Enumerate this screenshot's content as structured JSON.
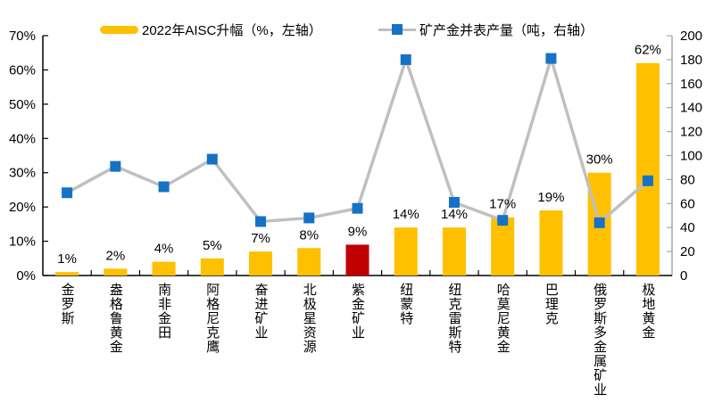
{
  "chart_data": {
    "type": "combo-bar-line",
    "title": "",
    "background": "#FFFFFF",
    "grid": false,
    "legend_position": "top",
    "categories": [
      "金罗斯",
      "盎格鲁黄金",
      "南非金田",
      "阿格尼克鹰",
      "奋进矿业",
      "北极星资源",
      "紫金矿业",
      "纽蒙特",
      "纽克雷斯特",
      "哈莫尼黄金",
      "巴理克",
      "俄罗斯多金属矿业",
      "极地黄金"
    ],
    "series": [
      {
        "name": "2022年AISC升幅（%，左轴）",
        "type": "bar",
        "axis": "left",
        "unit": "%",
        "values": [
          1,
          2,
          4,
          5,
          7,
          8,
          9,
          14,
          14,
          17,
          19,
          30,
          62
        ],
        "labels": [
          "1%",
          "2%",
          "4%",
          "5%",
          "7%",
          "8%",
          "9%",
          "14%",
          "14%",
          "17%",
          "19%",
          "30%",
          "62%"
        ],
        "color": "#FFC000",
        "highlight": {
          "index": 6,
          "color": "#C00000"
        }
      },
      {
        "name": "矿产金并表产量（吨，右轴）",
        "type": "line",
        "axis": "right",
        "unit": "吨",
        "values": [
          69,
          91,
          74,
          97,
          45,
          48,
          56,
          180,
          61,
          46,
          181,
          44,
          79
        ],
        "line_color": "#C0C0C0",
        "marker_color": "#1572C6"
      }
    ],
    "axes": {
      "left": {
        "min": 0,
        "max": 70,
        "step": 10,
        "tick_labels": [
          "0%",
          "10%",
          "20%",
          "30%",
          "40%",
          "50%",
          "60%",
          "70%"
        ],
        "line_color": "#000000"
      },
      "right": {
        "min": 0,
        "max": 200,
        "step": 20,
        "tick_labels": [
          "0",
          "20",
          "40",
          "60",
          "80",
          "100",
          "120",
          "140",
          "160",
          "180",
          "200"
        ],
        "line_color": "#A6A6A6"
      }
    },
    "text_color": "#000000"
  }
}
